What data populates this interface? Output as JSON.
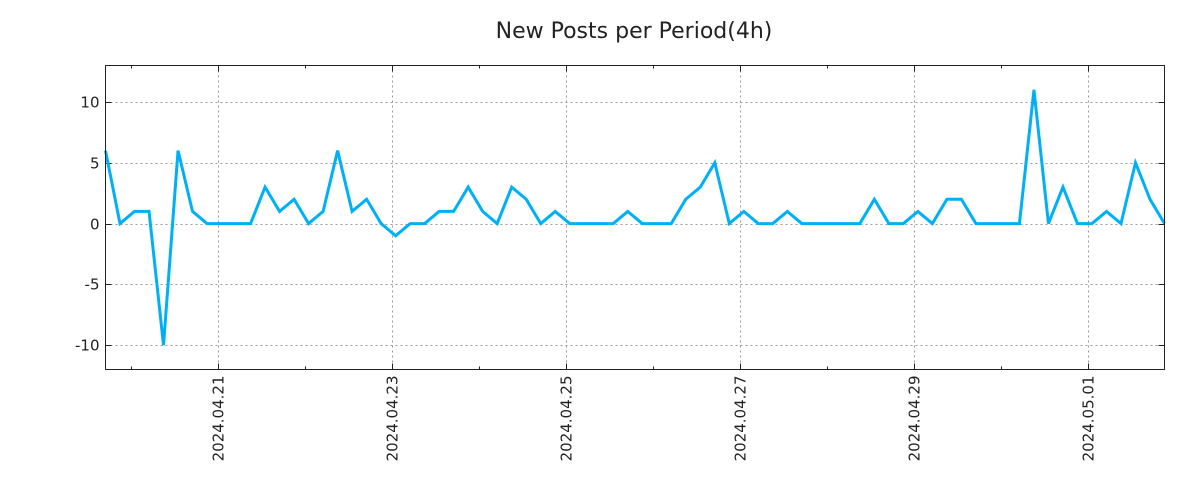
{
  "chart_data": {
    "type": "line",
    "title": "New Posts per Period(4h)",
    "xlabel": "",
    "ylabel": "",
    "x_start": "2024-04-19T17:00",
    "x_step_hours": 4,
    "values": [
      6,
      0,
      1,
      1,
      -10,
      6,
      1,
      0,
      0,
      0,
      0,
      3,
      1,
      2,
      0,
      1,
      6,
      1,
      2,
      0,
      -1,
      0,
      0,
      1,
      1,
      3,
      1,
      0,
      3,
      2,
      0,
      1,
      0,
      0,
      0,
      0,
      1,
      0,
      0,
      0,
      2,
      3,
      5,
      0,
      1,
      0,
      0,
      1,
      0,
      0,
      0,
      0,
      0,
      2,
      0,
      0,
      1,
      0,
      2,
      2,
      0,
      0,
      0,
      0,
      11,
      0,
      3,
      0,
      0,
      1,
      0,
      5,
      2,
      0
    ],
    "ylim": [
      -12,
      13
    ],
    "yticks": [
      10,
      5,
      0,
      -5,
      -10
    ],
    "ytick_labels": [
      "10",
      "5",
      "0",
      "-5",
      "-10"
    ],
    "xticks": [
      "2024-04-21",
      "2024-04-23",
      "2024-04-25",
      "2024-04-27",
      "2024-04-29",
      "2024-05-01"
    ],
    "xtick_labels": [
      "2024.04.21",
      "2024.04.23",
      "2024.04.25",
      "2024.04.27",
      "2024.04.29",
      "2024.05.01"
    ],
    "xminor_ticks": [
      "2024-04-20",
      "2024-04-22",
      "2024-04-24",
      "2024-04-26",
      "2024-04-28",
      "2024-04-30"
    ],
    "grid": true,
    "line_color": "#00b0f6"
  }
}
